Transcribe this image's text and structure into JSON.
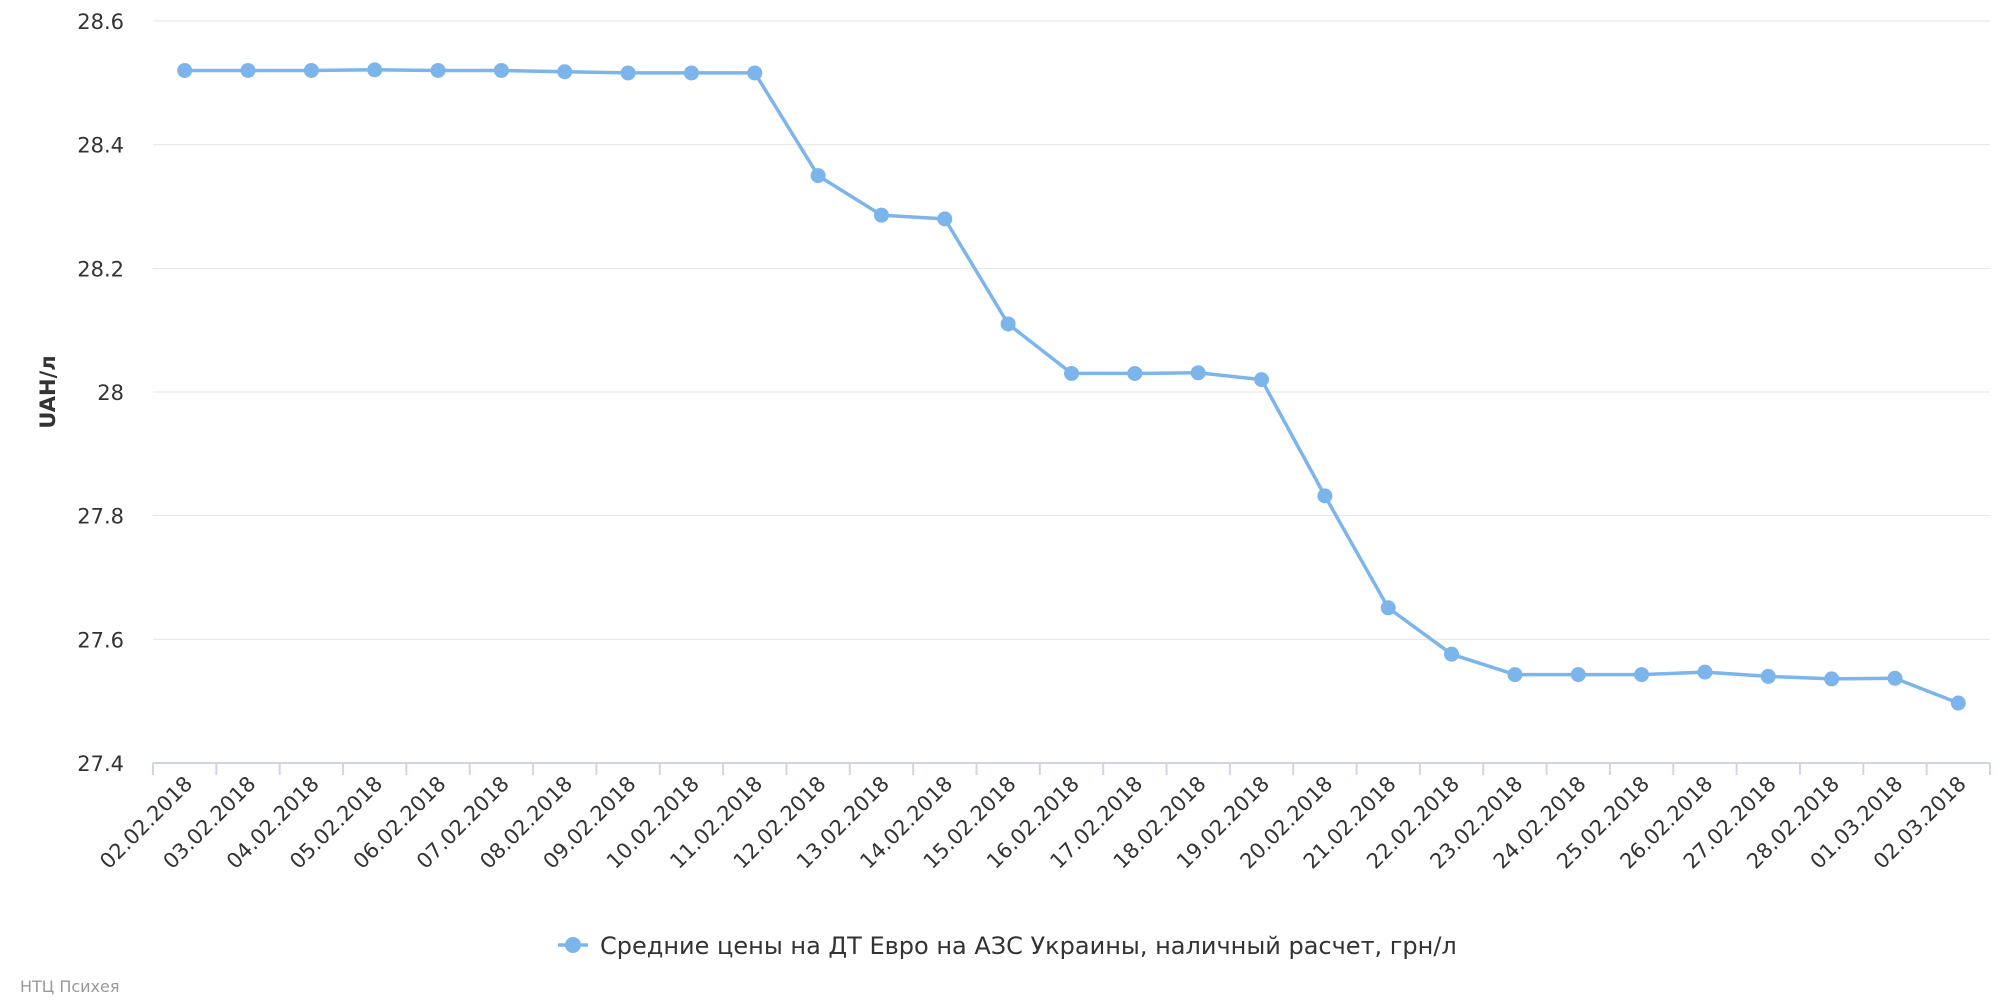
{
  "chart_data": {
    "type": "line",
    "ylabel": "UAH/л",
    "xlabel": "",
    "title": "",
    "ylim": [
      27.4,
      28.6
    ],
    "y_ticks": [
      27.4,
      27.6,
      27.8,
      28,
      28.2,
      28.4,
      28.6
    ],
    "y_tick_labels": [
      "27.4",
      "27.6",
      "27.8",
      "28",
      "28.2",
      "28.4",
      "28.6"
    ],
    "grid": true,
    "legend_position": "bottom-center",
    "categories": [
      "02.02.2018",
      "03.02.2018",
      "04.02.2018",
      "05.02.2018",
      "06.02.2018",
      "07.02.2018",
      "08.02.2018",
      "09.02.2018",
      "10.02.2018",
      "11.02.2018",
      "12.02.2018",
      "13.02.2018",
      "14.02.2018",
      "15.02.2018",
      "16.02.2018",
      "17.02.2018",
      "18.02.2018",
      "19.02.2018",
      "20.02.2018",
      "21.02.2018",
      "22.02.2018",
      "23.02.2018",
      "24.02.2018",
      "25.02.2018",
      "26.02.2018",
      "27.02.2018",
      "28.02.2018",
      "01.03.2018",
      "02.03.2018"
    ],
    "series": [
      {
        "name": "Средние цены на ДТ Евро на АЗС Украины, наличный расчет, грн/л",
        "color": "#7cb5ec",
        "values": [
          28.52,
          28.52,
          28.52,
          28.521,
          28.52,
          28.52,
          28.518,
          28.516,
          28.516,
          28.516,
          28.35,
          28.286,
          28.28,
          28.11,
          28.03,
          28.03,
          28.031,
          28.02,
          27.832,
          27.651,
          27.576,
          27.543,
          27.543,
          27.543,
          27.547,
          27.54,
          27.536,
          27.537,
          27.497
        ]
      }
    ]
  },
  "credits": "НТЦ Психея",
  "colors": {
    "series": "#7cb5ec",
    "grid": "#e6e6e6",
    "axis": "#ccd6eb",
    "text": "#333333",
    "credits": "#999999"
  }
}
